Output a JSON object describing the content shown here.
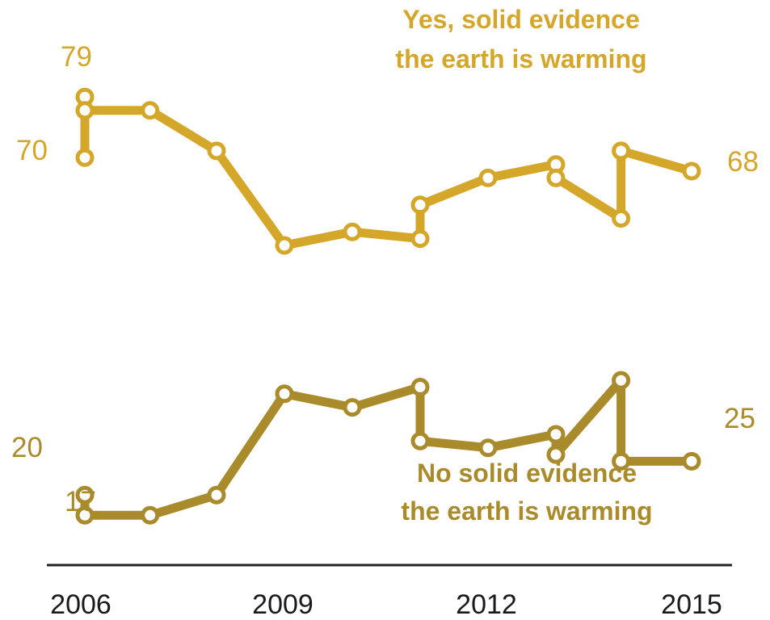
{
  "chart_data": {
    "type": "line",
    "x_ticks": [
      "2006",
      "2009",
      "2012",
      "2015"
    ],
    "xlim": [
      2006,
      2015
    ],
    "ylim": [
      15,
      82
    ],
    "grid": false,
    "legend": "none",
    "series": [
      {
        "name": "Yes, solid evidence the earth is warming",
        "color": "#d4a62a",
        "label_style": "normal",
        "points": [
          {
            "x": 2006.06,
            "y": 70
          },
          {
            "x": 2006.06,
            "y": 79
          },
          {
            "x": 2006.06,
            "y": 77
          },
          {
            "x": 2007.02,
            "y": 77
          },
          {
            "x": 2008.0,
            "y": 71
          },
          {
            "x": 2009.0,
            "y": 57
          },
          {
            "x": 2010.0,
            "y": 59
          },
          {
            "x": 2011.0,
            "y": 58
          },
          {
            "x": 2011.0,
            "y": 63
          },
          {
            "x": 2012.0,
            "y": 67
          },
          {
            "x": 2013.0,
            "y": 69
          },
          {
            "x": 2013.0,
            "y": 67
          },
          {
            "x": 2013.96,
            "y": 61
          },
          {
            "x": 2013.96,
            "y": 71
          },
          {
            "x": 2015.0,
            "y": 68
          }
        ]
      },
      {
        "name": "No solid evidence the earth is warming",
        "color": "#a98b2c",
        "label_style": "normal",
        "points": [
          {
            "x": 2006.06,
            "y": 20
          },
          {
            "x": 2006.06,
            "y": 17
          },
          {
            "x": 2007.02,
            "y": 17
          },
          {
            "x": 2008.0,
            "y": 20
          },
          {
            "x": 2009.0,
            "y": 35
          },
          {
            "x": 2010.0,
            "y": 33
          },
          {
            "x": 2011.0,
            "y": 36
          },
          {
            "x": 2011.0,
            "y": 28
          },
          {
            "x": 2012.0,
            "y": 27
          },
          {
            "x": 2013.0,
            "y": 29
          },
          {
            "x": 2013.0,
            "y": 26
          },
          {
            "x": 2013.96,
            "y": 37
          },
          {
            "x": 2013.96,
            "y": 25
          },
          {
            "x": 2015.0,
            "y": 25
          }
        ]
      }
    ],
    "point_labels": [
      {
        "series": 0,
        "text": "79"
      },
      {
        "series": 0,
        "text": "70"
      },
      {
        "series": 0,
        "text": "68"
      },
      {
        "series": 1,
        "text": "20"
      },
      {
        "series": 1,
        "text": "17"
      },
      {
        "series": 1,
        "text": "25"
      }
    ],
    "annotations": [
      {
        "series": 0,
        "lines": [
          "Yes, solid evidence",
          "the earth is warming"
        ]
      },
      {
        "series": 1,
        "lines": [
          "No solid evidence",
          "the earth is warming"
        ]
      }
    ]
  }
}
